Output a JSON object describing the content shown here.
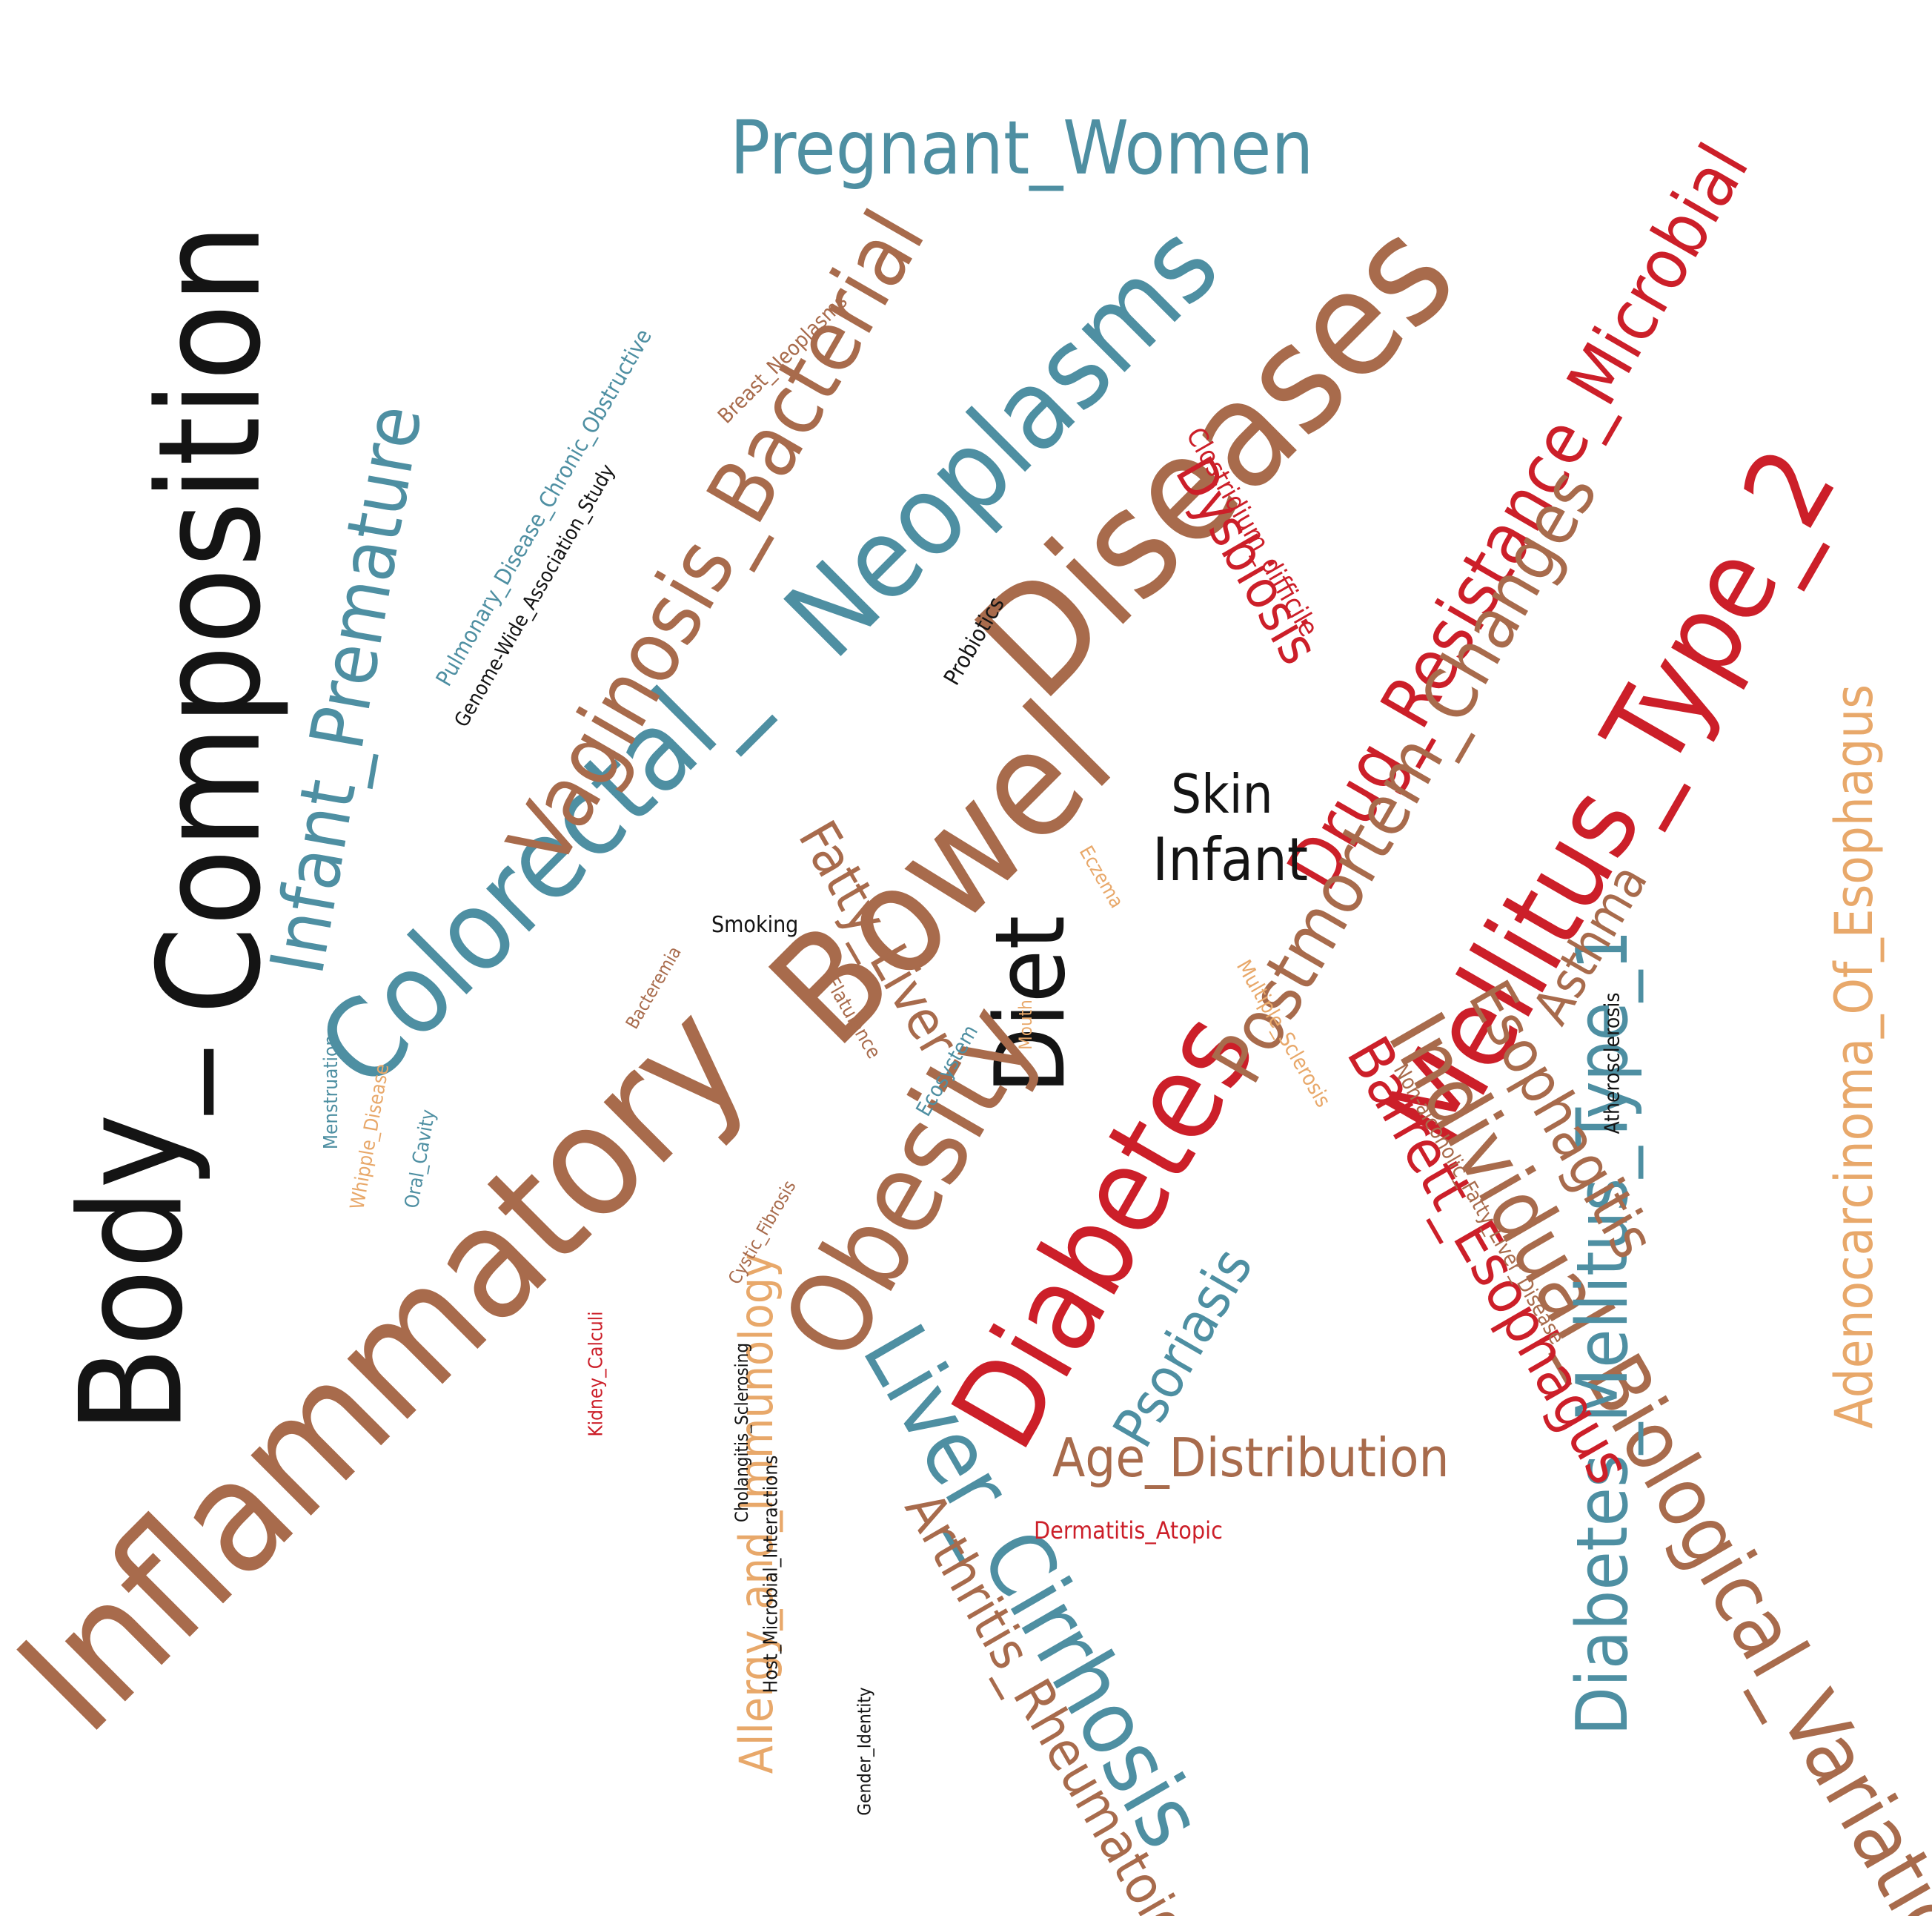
{
  "words": [
    {
      "key": "inflammatory_bowel_diseases_1",
      "text": "Inflammatory"
    },
    {
      "key": "bowel",
      "text": "Bowel"
    },
    {
      "key": "diseases",
      "text": "Diseases"
    },
    {
      "key": "body_composition_1",
      "text": "Body_"
    },
    {
      "key": "composition",
      "text": "Composition"
    },
    {
      "key": "colorectal",
      "text": "Colorectal_"
    },
    {
      "key": "neoplasms",
      "text": "Neoplasms"
    },
    {
      "key": "diet",
      "text": "Diet"
    },
    {
      "key": "diabetes",
      "text": "Diabetes"
    },
    {
      "key": "mellitus_type2",
      "text": "Mellitus_Type_2"
    },
    {
      "key": "obesity",
      "text": "Obesity"
    },
    {
      "key": "liver_cirrhosis",
      "text": "Liver_Cirrhosis"
    },
    {
      "key": "individual_bio_var",
      "text": "Individual_Biological_Variation"
    },
    {
      "key": "diabetes_mellitus_type1",
      "text": "Diabetes_Mellitus_Type_1"
    },
    {
      "key": "adenocarcinoma",
      "text": "Adenocarcinoma_Of_Esophagus"
    },
    {
      "key": "drug_resistance",
      "text": "Drug_Resistance_Microbial"
    },
    {
      "key": "pregnant_women",
      "text": "Pregnant_Women"
    },
    {
      "key": "infant_premature",
      "text": "Infant_Premature"
    },
    {
      "key": "vaginosis_bacterial",
      "text": "Vaginosis_Bacterial"
    },
    {
      "key": "postmortem_changes",
      "text": "Postmortem_Changes"
    },
    {
      "key": "barrett_esophagus",
      "text": "Barrett_Esophagus"
    },
    {
      "key": "esophagitis",
      "text": "Esophagitis"
    },
    {
      "key": "age_distribution",
      "text": "Age_Distribution"
    },
    {
      "key": "allergy_immunology",
      "text": "Allergy_and_Immunology"
    },
    {
      "key": "arthritis_rheumatoid",
      "text": "Arthritis_Rheumatoid"
    },
    {
      "key": "fatty_liver",
      "text": "Fatty_Liver"
    },
    {
      "key": "dysbiosis",
      "text": "Dysbiosis"
    },
    {
      "key": "asthma",
      "text": "Asthma"
    },
    {
      "key": "psoriasis",
      "text": "Psoriasis"
    },
    {
      "key": "skin",
      "text": "Skin"
    },
    {
      "key": "infant",
      "text": "Infant"
    },
    {
      "key": "clostridium",
      "text": "Clostridium_difficile"
    },
    {
      "key": "breast_neoplasms",
      "text": "Breast_Neoplasms"
    },
    {
      "key": "pulmonary",
      "text": "Pulmonary_Disease_Chronic_Obstructive"
    },
    {
      "key": "gwas",
      "text": "Genome-Wide_Association_Study"
    },
    {
      "key": "probiotics",
      "text": "Probiotics"
    },
    {
      "key": "smoking",
      "text": "Smoking"
    },
    {
      "key": "eczema",
      "text": "Eczema"
    },
    {
      "key": "bacteremia",
      "text": "Bacteremia"
    },
    {
      "key": "flatulence",
      "text": "Flatulence"
    },
    {
      "key": "mouth",
      "text": "Mouth"
    },
    {
      "key": "ecosystem",
      "text": "Ecosystem"
    },
    {
      "key": "multiple_sclerosis",
      "text": "Multiple_Sclerosis"
    },
    {
      "key": "atherosclerosis",
      "text": "Atherosclerosis"
    },
    {
      "key": "nafld",
      "text": "Non-alcoholic_Fatty_Liver_Disease"
    },
    {
      "key": "menstruation",
      "text": "Menstruation"
    },
    {
      "key": "whipple",
      "text": "Whipple_Disease"
    },
    {
      "key": "oral_cavity",
      "text": "Oral_Cavity"
    },
    {
      "key": "cystic_fibrosis",
      "text": "Cystic_Fibrosis"
    },
    {
      "key": "kidney_calculi",
      "text": "Kidney_Calculi"
    },
    {
      "key": "cholangitis",
      "text": "Cholangitis_Sclerosing"
    },
    {
      "key": "host_microbial",
      "text": "Host_Microbial_Interactions"
    },
    {
      "key": "dermatitis_atopic",
      "text": "Dermatitis_Atopic"
    },
    {
      "key": "gender_identity",
      "text": "Gender_Identity"
    }
  ]
}
